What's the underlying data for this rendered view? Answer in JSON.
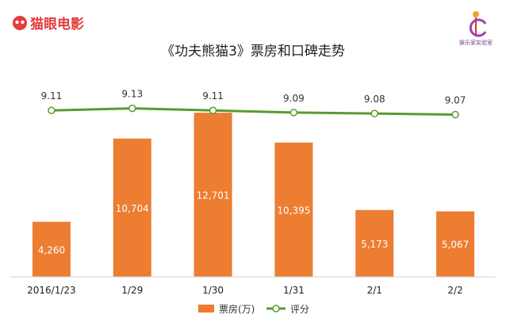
{
  "header": {
    "logo_text": "猫眼电影",
    "brand_text": "娱乐家实验室"
  },
  "chart_data": {
    "type": "bar",
    "title": "《功夫熊猫3》票房和口碑走势",
    "categories": [
      "2016/1/23",
      "1/29",
      "1/30",
      "1/31",
      "2/1",
      "2/2"
    ],
    "series": [
      {
        "name": "票房(万)",
        "type": "bar",
        "color": "#ed7d31",
        "values": [
          4260,
          10704,
          12701,
          10395,
          5173,
          5067
        ],
        "labels": [
          "4,260",
          "10,704",
          "12,701",
          "10,395",
          "5,173",
          "5,067"
        ]
      },
      {
        "name": "评分",
        "type": "line",
        "color": "#5b9a32",
        "values": [
          9.11,
          9.13,
          9.11,
          9.09,
          9.08,
          9.07
        ],
        "labels": [
          "9.11",
          "9.13",
          "9.11",
          "9.09",
          "9.08",
          "9.07"
        ]
      }
    ],
    "bar_ylim": [
      0,
      14000
    ],
    "line_ylim": [
      7.5,
      9.25
    ],
    "legend": "bottom-center",
    "grid": false
  }
}
